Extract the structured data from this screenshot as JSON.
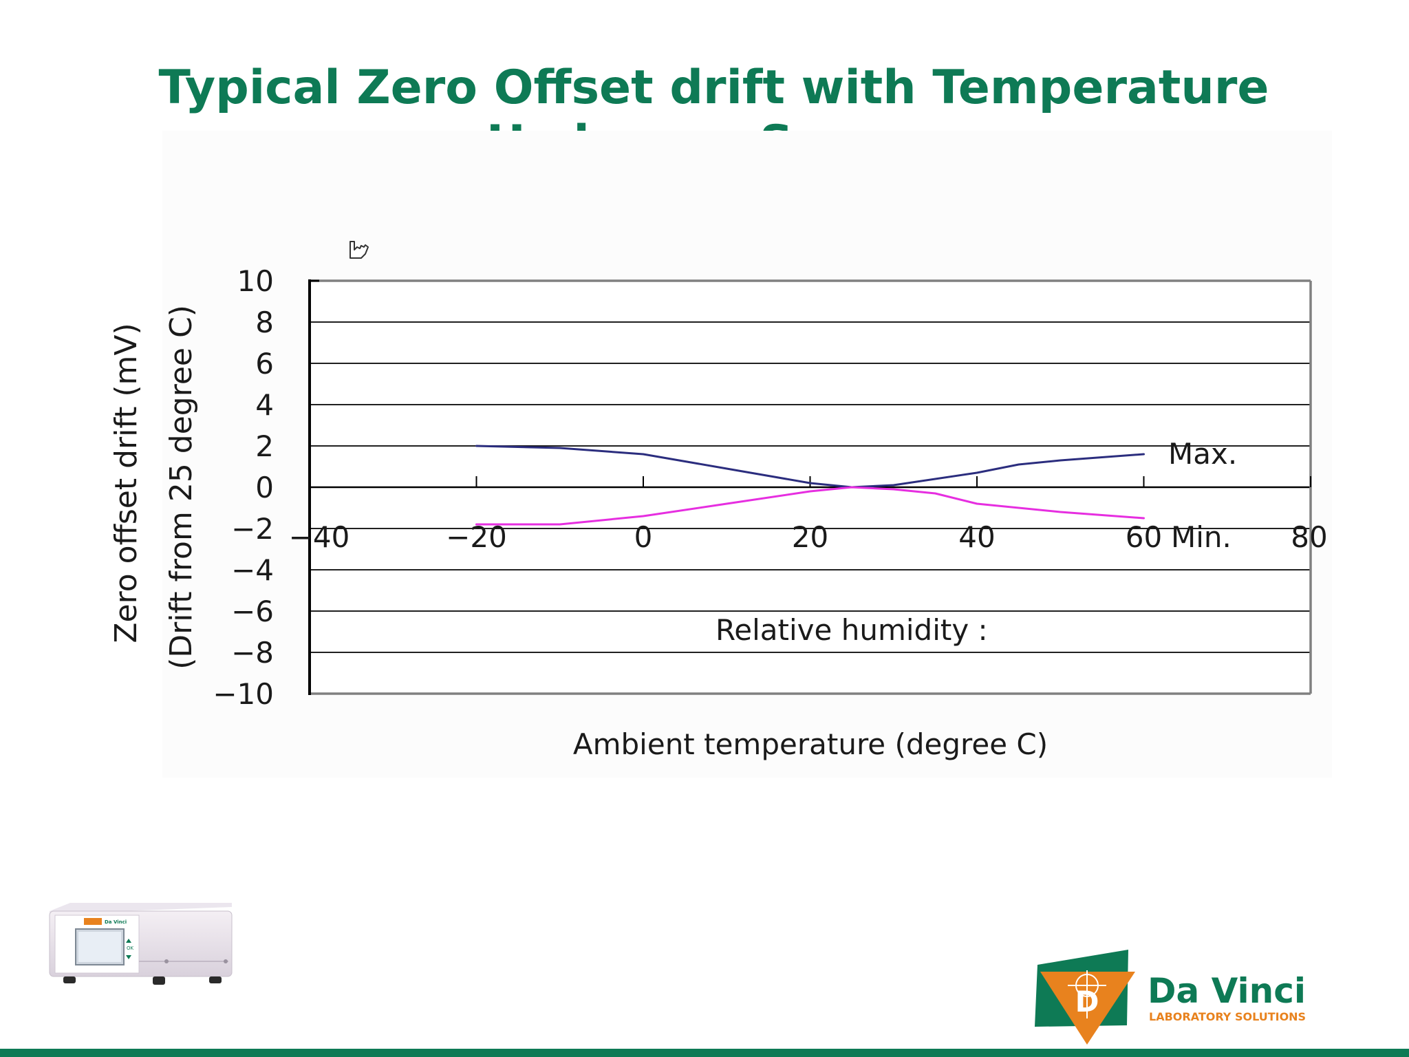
{
  "slide": {
    "title_line1": "Typical Zero Offset drift with Temperature",
    "title_line2": "Hydrogen Sensor"
  },
  "chart_data": {
    "type": "line",
    "xlabel": "Ambient temperature (degree C)",
    "ylabel_line1": "Zero offset drift (mV)",
    "ylabel_line2": "(Drift from 25 degree C)",
    "xlim": [
      -40,
      80
    ],
    "ylim": [
      -10,
      10
    ],
    "x_ticks": [
      -40,
      -20,
      0,
      20,
      40,
      60,
      80
    ],
    "x_tick_labels": [
      "−40",
      "−20",
      "0",
      "20",
      "40",
      "60",
      "80"
    ],
    "y_ticks": [
      10,
      8,
      6,
      4,
      2,
      0,
      -2,
      -4,
      -6,
      -8,
      -10
    ],
    "y_tick_labels": [
      "10",
      "8",
      "6",
      "4",
      "2",
      "0",
      "−2",
      "−4",
      "−6",
      "−8",
      "−10"
    ],
    "grid": true,
    "annotation": "Relative humidity :",
    "colors": {
      "max": "#2b2d7e",
      "min": "#e62ee0",
      "grid": "#000000",
      "frame": "#808080"
    },
    "series": [
      {
        "name": "Max.",
        "x": [
          -20,
          -10,
          0,
          10,
          20,
          25,
          30,
          40,
          45,
          50,
          60
        ],
        "y": [
          2.0,
          1.9,
          1.6,
          0.9,
          0.2,
          0.0,
          0.1,
          0.7,
          1.1,
          1.3,
          1.6
        ]
      },
      {
        "name": "Min.",
        "x": [
          -20,
          -10,
          0,
          10,
          20,
          25,
          30,
          35,
          40,
          50,
          60
        ],
        "y": [
          -1.8,
          -1.8,
          -1.4,
          -0.8,
          -0.2,
          0.0,
          -0.1,
          -0.3,
          -0.8,
          -1.2,
          -1.5
        ]
      }
    ]
  },
  "logo": {
    "brand_name": "Da Vinci",
    "tagline": "LABORATORY SOLUTIONS",
    "monogram": "D"
  },
  "product": {
    "screen_brand": "Da Vinci",
    "button_label": "OK"
  }
}
